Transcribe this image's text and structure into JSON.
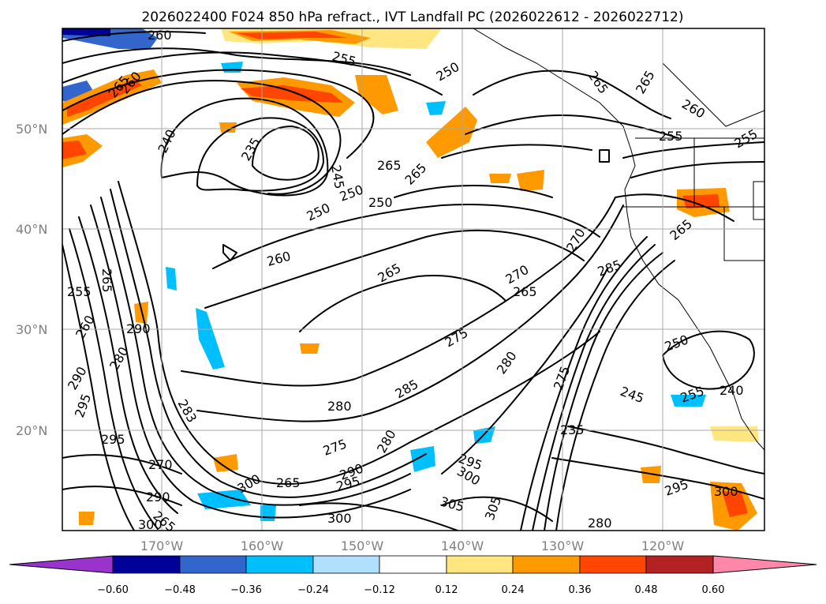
{
  "title": "2026022400 F024 850 hPa refract., IVT Landfall PC (2026022612 - 2026022712)",
  "lat_labels": [
    "50°N",
    "40°N",
    "30°N",
    "20°N"
  ],
  "lon_labels": [
    "170°W",
    "160°W",
    "150°W",
    "140°W",
    "130°W",
    "120°W"
  ],
  "colorbar": {
    "colors": [
      "#9933cc",
      "#000099",
      "#3366cc",
      "#00bfff",
      "#b0e0ff",
      "#ffffff",
      "#ffe680",
      "#ff9900",
      "#ff4500",
      "#b22222",
      "#ff88aa"
    ],
    "tick_labels": [
      "−0.60",
      "−0.48",
      "−0.36",
      "−0.24",
      "−0.12",
      "0.12",
      "0.24",
      "0.36",
      "0.48",
      "0.60"
    ]
  },
  "contour_labels": [
    "260",
    "255",
    "250",
    "265",
    "265",
    "260",
    "255",
    "255",
    "265",
    "260",
    "240",
    "235",
    "245",
    "250",
    "265",
    "265",
    "250",
    "250",
    "260",
    "265",
    "265",
    "270",
    "285",
    "265",
    "255",
    "270",
    "275",
    "265",
    "260",
    "290",
    "250",
    "280",
    "275",
    "245",
    "280",
    "285",
    "255",
    "240",
    "290",
    "295",
    "280",
    "283",
    "295",
    "235",
    "270",
    "275",
    "265",
    "290",
    "280",
    "295",
    "300",
    "295",
    "300",
    "290",
    "265",
    "305",
    "300",
    "300",
    "305",
    "280",
    "295",
    "300"
  ]
}
